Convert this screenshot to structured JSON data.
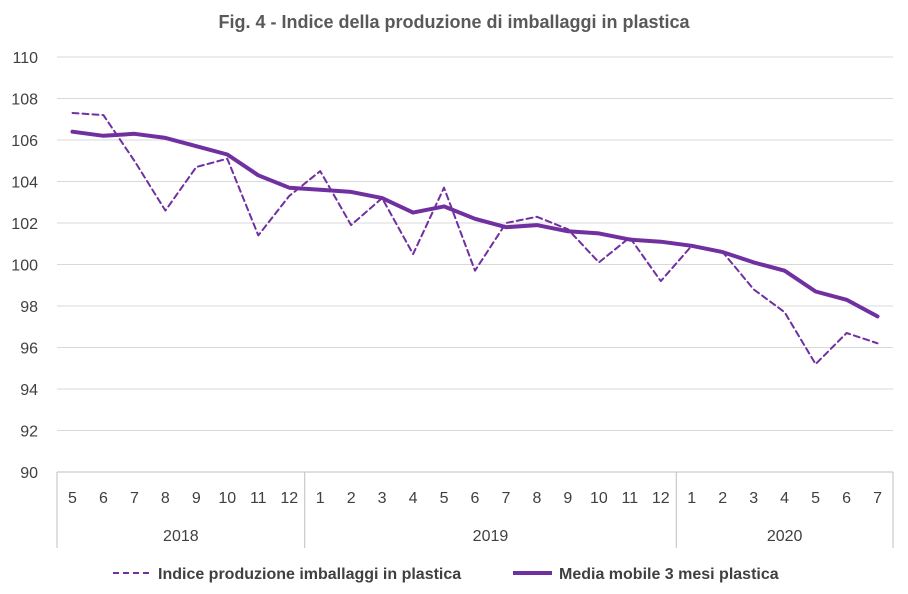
{
  "chart_data": {
    "type": "line",
    "title": "Fig. 4  - Indice della produzione di imballaggi in plastica",
    "xlabel": "",
    "ylabel": "",
    "ylim": [
      90,
      110
    ],
    "yticks": [
      90,
      92,
      94,
      96,
      98,
      100,
      102,
      104,
      106,
      108,
      110
    ],
    "grid": true,
    "legend_position": "bottom",
    "categories": [
      "5",
      "6",
      "7",
      "8",
      "9",
      "10",
      "11",
      "12",
      "1",
      "2",
      "3",
      "4",
      "5",
      "6",
      "7",
      "8",
      "9",
      "10",
      "11",
      "12",
      "1",
      "2",
      "3",
      "4",
      "5",
      "6",
      "7"
    ],
    "year_groups": [
      {
        "label": "2018",
        "count": 8
      },
      {
        "label": "2019",
        "count": 12
      },
      {
        "label": "2020",
        "count": 7
      }
    ],
    "series": [
      {
        "name": "Indice produzione imballaggi in plastica",
        "style": "dashed",
        "color": "#7030A0",
        "values": [
          107.3,
          107.2,
          105.0,
          102.6,
          104.7,
          105.1,
          101.4,
          103.3,
          104.5,
          101.9,
          103.2,
          100.5,
          103.7,
          99.7,
          102.0,
          102.3,
          101.7,
          100.1,
          101.3,
          99.2,
          100.9,
          100.6,
          98.8,
          97.7,
          95.2,
          96.7,
          96.2
        ]
      },
      {
        "name": "Media mobile 3 mesi plastica",
        "style": "solid",
        "color": "#7030A0",
        "values": [
          106.4,
          106.2,
          106.3,
          106.1,
          105.7,
          105.3,
          104.3,
          103.7,
          103.6,
          103.5,
          103.2,
          102.5,
          102.8,
          102.2,
          101.8,
          101.9,
          101.6,
          101.5,
          101.2,
          101.1,
          100.9,
          100.6,
          100.1,
          99.7,
          98.7,
          98.3,
          97.5
        ]
      }
    ]
  }
}
